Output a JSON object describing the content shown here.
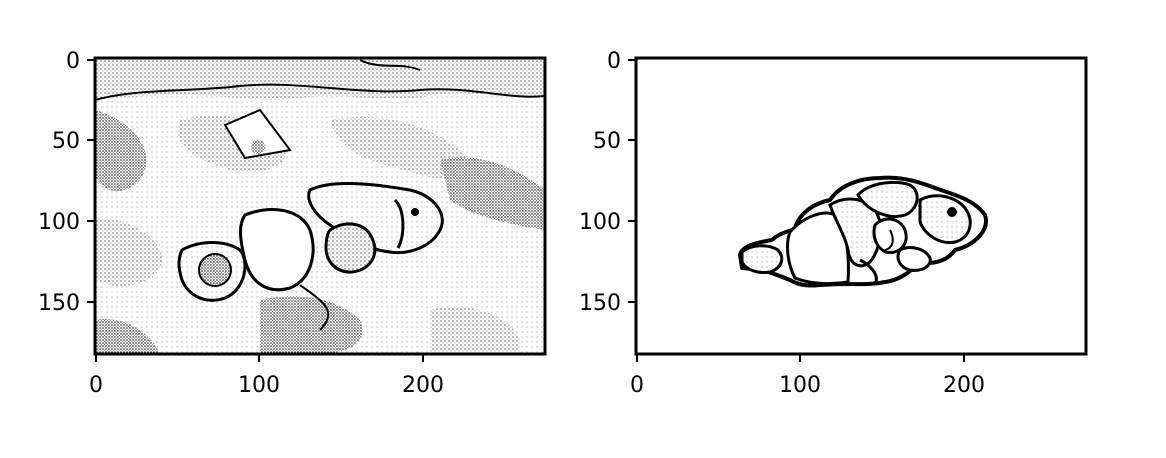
{
  "figure": {
    "panels": [
      {
        "name": "edge-image-panel",
        "image_description_kind": "grayscale-stippled-edge-map",
        "xlim": [
          0,
          272
        ],
        "ylim": [
          0,
          180
        ],
        "xticks": [
          0,
          100,
          200
        ],
        "yticks": [
          0,
          50,
          100,
          150
        ],
        "xtick_labels": [
          "0",
          "100",
          "200"
        ],
        "ytick_labels": [
          "0",
          "50",
          "100",
          "150"
        ]
      },
      {
        "name": "segmented-fish-panel",
        "image_description_kind": "segmented-outline",
        "xlim": [
          0,
          272
        ],
        "ylim": [
          0,
          180
        ],
        "xticks": [
          0,
          100,
          200
        ],
        "yticks": [
          0,
          50,
          100,
          150
        ],
        "xtick_labels": [
          "0",
          "100",
          "200"
        ],
        "ytick_labels": [
          "0",
          "50",
          "100",
          "150"
        ]
      }
    ]
  },
  "colors": {
    "ink": "#000000",
    "paper": "#ffffff",
    "stipple": "#777777"
  }
}
